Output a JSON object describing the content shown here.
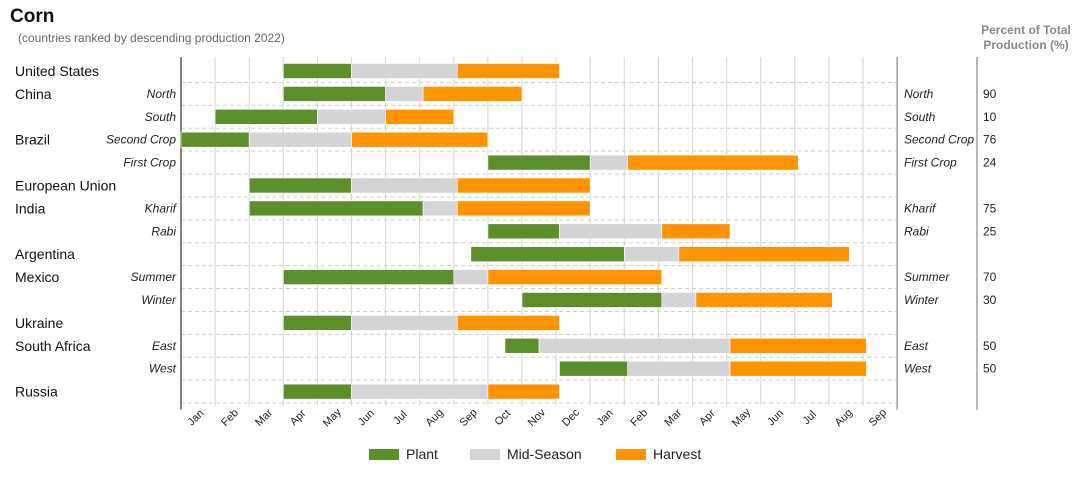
{
  "title": "Corn",
  "subtitle": "(countries ranked by descending production 2022)",
  "pct_header_line1": "Percent of Total",
  "pct_header_line2": "Production (%)",
  "chart_data": {
    "type": "gantt",
    "month_ticks": [
      "Jan",
      "Feb",
      "Mar",
      "Apr",
      "May",
      "Jun",
      "Jul",
      "Aug",
      "Sep",
      "Oct",
      "Nov",
      "Dec",
      "Jan",
      "Feb",
      "Mar",
      "Apr",
      "May",
      "Jun",
      "Jul",
      "Aug",
      "Sep"
    ],
    "phases": [
      {
        "key": "plant",
        "name": "Plant",
        "color": "#5b8f2a"
      },
      {
        "key": "mid",
        "name": "Mid-Season",
        "color": "#d4d4d6"
      },
      {
        "key": "harvest",
        "name": "Harvest",
        "color": "#ff9400"
      }
    ],
    "rows": [
      {
        "country": "United States",
        "region": "",
        "pct": "",
        "plant": [
          3.0,
          5.0
        ],
        "mid": [
          5.0,
          8.1
        ],
        "harvest": [
          8.1,
          11.1
        ]
      },
      {
        "country": "China",
        "region": "North",
        "pct": "90",
        "plant": [
          3.0,
          6.0
        ],
        "mid": [
          6.0,
          7.1
        ],
        "harvest": [
          7.1,
          10.0
        ]
      },
      {
        "country": "",
        "region": "South",
        "pct": "10",
        "plant": [
          1.0,
          4.0
        ],
        "mid": [
          4.0,
          6.0
        ],
        "harvest": [
          6.0,
          8.0
        ]
      },
      {
        "country": "Brazil",
        "region": "Second Crop",
        "pct": "76",
        "plant": [
          0.0,
          2.0
        ],
        "mid": [
          2.0,
          5.0
        ],
        "harvest": [
          5.0,
          9.0
        ]
      },
      {
        "country": "",
        "region": "First Crop",
        "pct": "24",
        "plant": [
          9.0,
          12.0
        ],
        "mid": [
          12.0,
          13.1
        ],
        "harvest": [
          13.1,
          18.1
        ]
      },
      {
        "country": "European Union",
        "region": "",
        "pct": "",
        "plant": [
          2.0,
          5.0
        ],
        "mid": [
          5.0,
          8.1
        ],
        "harvest": [
          8.1,
          12.0
        ]
      },
      {
        "country": "India",
        "region": "Kharif",
        "pct": "75",
        "plant": [
          2.0,
          7.1
        ],
        "mid": [
          7.1,
          8.1
        ],
        "harvest": [
          8.1,
          12.0
        ]
      },
      {
        "country": "",
        "region": "Rabi",
        "pct": "25",
        "plant": [
          9.0,
          11.1
        ],
        "mid": [
          11.1,
          14.1
        ],
        "harvest": [
          14.1,
          16.1
        ]
      },
      {
        "country": "Argentina",
        "region": "",
        "pct": "",
        "plant": [
          8.5,
          13.0
        ],
        "mid": [
          13.0,
          14.6
        ],
        "harvest": [
          14.6,
          19.6
        ]
      },
      {
        "country": "Mexico",
        "region": "Summer",
        "pct": "70",
        "plant": [
          3.0,
          8.0
        ],
        "mid": [
          8.0,
          9.0
        ],
        "harvest": [
          9.0,
          14.1
        ]
      },
      {
        "country": "",
        "region": "Winter",
        "pct": "30",
        "plant": [
          10.0,
          14.1
        ],
        "mid": [
          14.1,
          15.1
        ],
        "harvest": [
          15.1,
          19.1
        ]
      },
      {
        "country": "Ukraine",
        "region": "",
        "pct": "",
        "plant": [
          3.0,
          5.0
        ],
        "mid": [
          5.0,
          8.1
        ],
        "harvest": [
          8.1,
          11.1
        ]
      },
      {
        "country": "South Africa",
        "region": "East",
        "pct": "50",
        "plant": [
          9.5,
          10.5
        ],
        "mid": [
          10.5,
          16.1
        ],
        "harvest": [
          16.1,
          20.1
        ]
      },
      {
        "country": "",
        "region": "West",
        "pct": "50",
        "plant": [
          11.1,
          13.1
        ],
        "mid": [
          13.1,
          16.1
        ],
        "harvest": [
          16.1,
          20.1
        ]
      },
      {
        "country": "Russia",
        "region": "",
        "pct": "",
        "plant": [
          3.0,
          5.0
        ],
        "mid": [
          5.0,
          9.0
        ],
        "harvest": [
          9.0,
          11.1
        ]
      }
    ],
    "legend_position": "bottom"
  }
}
